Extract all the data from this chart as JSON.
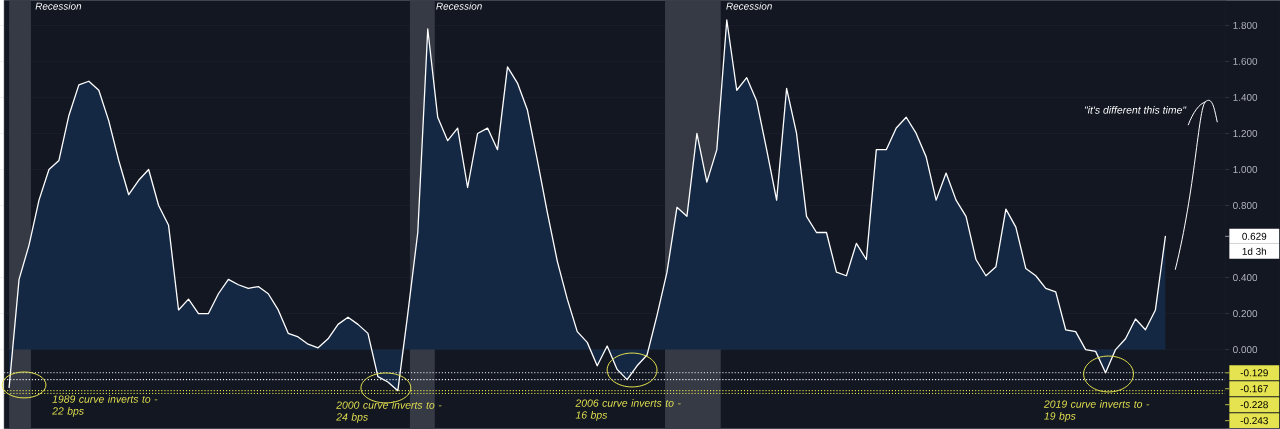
{
  "chart_data": {
    "type": "area",
    "categories": [
      null,
      null,
      null,
      null,
      null,
      null,
      null,
      null,
      null,
      null,
      null,
      null,
      null,
      null,
      null,
      null,
      null,
      null,
      null,
      null,
      null,
      null,
      null,
      null,
      null,
      null,
      null,
      null,
      null,
      null,
      null,
      null,
      null,
      null,
      null,
      null,
      null,
      null,
      null,
      null,
      null,
      null,
      null,
      null,
      null,
      null,
      null,
      null,
      null,
      null,
      null,
      null,
      null,
      null,
      null,
      null,
      null,
      null,
      null,
      null,
      null,
      null,
      null,
      null,
      null,
      null,
      null,
      null,
      null,
      null,
      null,
      null,
      null,
      null,
      null,
      null,
      null,
      null,
      null,
      null,
      null,
      null,
      null,
      null,
      null,
      null,
      null,
      null,
      null,
      null,
      null,
      null,
      null,
      null,
      null,
      null,
      null,
      null,
      null,
      null,
      null,
      null,
      null,
      null,
      null,
      null,
      null,
      null,
      null,
      null,
      null,
      null,
      null,
      null,
      null,
      null,
      null
    ],
    "series": [
      {
        "color": "#ffffff",
        "values": [
          -0.21,
          0.39,
          0.58,
          0.83,
          1.0,
          1.05,
          1.3,
          1.47,
          1.49,
          1.44,
          1.27,
          1.05,
          0.86,
          0.94,
          1.0,
          0.8,
          0.69,
          0.22,
          0.28,
          0.2,
          0.2,
          0.31,
          0.39,
          0.36,
          0.34,
          0.35,
          0.31,
          0.22,
          0.09,
          0.07,
          0.03,
          0.01,
          0.06,
          0.14,
          0.18,
          0.14,
          0.09,
          -0.15,
          -0.18,
          -0.228,
          0.2,
          0.65,
          1.78,
          1.29,
          1.16,
          1.23,
          0.9,
          1.2,
          1.23,
          1.11,
          1.57,
          1.48,
          1.33,
          1.05,
          0.76,
          0.49,
          0.28,
          0.1,
          0.04,
          -0.09,
          0.02,
          -0.11,
          -0.167,
          -0.09,
          -0.03,
          0.19,
          0.43,
          0.79,
          0.74,
          1.2,
          0.93,
          1.11,
          1.83,
          1.44,
          1.51,
          1.38,
          1.11,
          0.83,
          1.45,
          1.2,
          0.74,
          0.65,
          0.65,
          0.43,
          0.41,
          0.59,
          0.5,
          1.11,
          1.11,
          1.23,
          1.29,
          1.2,
          1.07,
          0.83,
          0.98,
          0.83,
          0.74,
          0.5,
          0.41,
          0.46,
          0.78,
          0.68,
          0.45,
          0.41,
          0.34,
          0.32,
          0.11,
          0.1,
          0.0,
          -0.01,
          -0.129,
          0.0,
          0.06,
          0.17,
          0.11,
          0.22,
          0.629
        ]
      }
    ],
    "ylim": [
      -0.44,
      1.94
    ],
    "yticks": [
      {
        "value": 0,
        "label": "0.000"
      },
      {
        "value": 0.2,
        "label": "0.200"
      },
      {
        "value": 0.4,
        "label": "0.400"
      },
      {
        "value": 0.8,
        "label": "0.800"
      },
      {
        "value": 1.0,
        "label": "1.000"
      },
      {
        "value": 1.2,
        "label": "1.200"
      },
      {
        "value": 1.4,
        "label": "1.400"
      },
      {
        "value": 1.6,
        "label": "1.600"
      },
      {
        "value": 1.8,
        "label": "1.800"
      }
    ],
    "tick_labels": "y",
    "grid": "y",
    "marker": "none",
    "line_style": "solid",
    "ref_lines": [
      {
        "axis": "y",
        "value": -0.129,
        "label": "-0.129",
        "color": "#ffffff",
        "line_style": "dotted"
      },
      {
        "axis": "y",
        "value": -0.167,
        "label": "-0.167",
        "color": "#ffffff",
        "line_style": "dotted"
      },
      {
        "axis": "y",
        "value": -0.228,
        "label": "-0.228",
        "color": "#e5e34f",
        "line_style": "dotted"
      },
      {
        "axis": "y",
        "value": -0.243,
        "label": "-0.243",
        "color": "#e5e34f",
        "line_style": "dotted"
      }
    ],
    "annotations": [
      "1989 curve inverts to -22 bps",
      "2000 curve inverts to -24 bps",
      "2006 curve inverts to -16 bps",
      "2019 curve inverts to -19 bps",
      "\"it's different this time\"",
      "0.629",
      "1d 3h",
      "Recession",
      "Recession",
      "Recession"
    ]
  }
}
